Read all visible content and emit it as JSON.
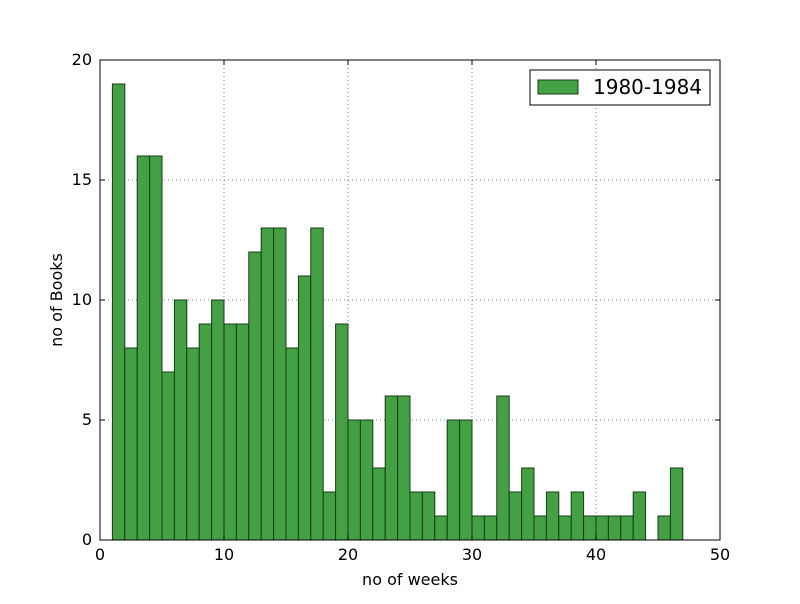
{
  "chart_data": {
    "type": "bar",
    "title": "",
    "xlabel": "no of weeks",
    "ylabel": "no of Books",
    "xlim": [
      0,
      50
    ],
    "ylim": [
      0,
      20
    ],
    "x_ticks": [
      0,
      10,
      20,
      30,
      40,
      50
    ],
    "y_ticks": [
      0,
      5,
      10,
      15,
      20
    ],
    "grid": true,
    "legend_position": "top-right",
    "bar_color": "#43a143",
    "edge_color": "#1a3a1a",
    "series": [
      {
        "name": "1980-1984",
        "bin_width": 1,
        "bin_starts": [
          1,
          2,
          3,
          4,
          5,
          6,
          7,
          8,
          9,
          10,
          11,
          12,
          13,
          14,
          15,
          16,
          17,
          18,
          19,
          20,
          21,
          22,
          23,
          24,
          25,
          26,
          27,
          28,
          29,
          30,
          31,
          32,
          33,
          34,
          35,
          36,
          37,
          38,
          39,
          40,
          41,
          42,
          43,
          44,
          45,
          46
        ],
        "values": [
          19,
          8,
          16,
          16,
          7,
          10,
          8,
          9,
          10,
          9,
          9,
          12,
          13,
          13,
          8,
          11,
          13,
          2,
          9,
          5,
          5,
          3,
          6,
          6,
          2,
          2,
          1,
          5,
          5,
          1,
          1,
          6,
          2,
          3,
          1,
          2,
          1,
          2,
          1,
          1,
          1,
          1,
          2,
          0,
          1,
          3
        ]
      }
    ]
  }
}
